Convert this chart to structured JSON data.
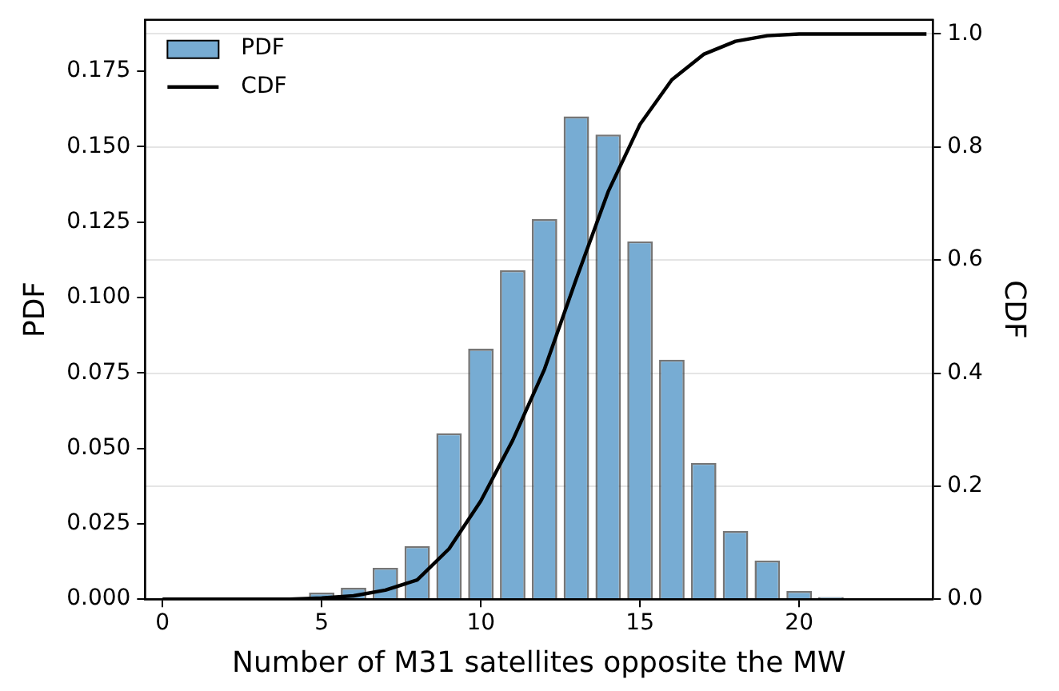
{
  "chart_data": {
    "type": "bar",
    "xlabel": "Number of M31 satellites opposite the MW",
    "ylabel": "PDF",
    "y2label": "CDF",
    "xlim": [
      -0.55,
      24.2
    ],
    "xticks": [
      0,
      5,
      10,
      15,
      20
    ],
    "ylim": [
      0,
      0.192
    ],
    "yticks": [
      {
        "value": 0,
        "label": "0.000"
      },
      {
        "value": 0.025,
        "label": "0.025"
      },
      {
        "value": 0.05,
        "label": "0.050"
      },
      {
        "value": 0.075,
        "label": "0.075"
      },
      {
        "value": 0.1,
        "label": "0.100"
      },
      {
        "value": 0.125,
        "label": "0.125"
      },
      {
        "value": 0.15,
        "label": "0.150"
      },
      {
        "value": 0.175,
        "label": "0.175"
      }
    ],
    "y2lim": [
      0,
      1.025
    ],
    "y2ticks": [
      {
        "value": 0,
        "label": "0.0"
      },
      {
        "value": 0.2,
        "label": "0.2"
      },
      {
        "value": 0.4,
        "label": "0.4"
      },
      {
        "value": 0.6,
        "label": "0.6"
      },
      {
        "value": 0.8,
        "label": "0.8"
      },
      {
        "value": 1,
        "label": "1.0"
      }
    ],
    "grid": "y",
    "legend": "top left",
    "series": [
      {
        "name": "PDF",
        "color": "#77acd3",
        "x": [
          0,
          1,
          2,
          3,
          4,
          5,
          6,
          7,
          8,
          9,
          10,
          11,
          12,
          13,
          14,
          15,
          16,
          17,
          18,
          19,
          20,
          21,
          22,
          23
        ],
        "values": [
          0,
          0,
          0,
          0,
          0,
          0.0022,
          0.0038,
          0.0104,
          0.0176,
          0.055,
          0.083,
          0.109,
          0.126,
          0.16,
          0.154,
          0.1186,
          0.0794,
          0.0452,
          0.0226,
          0.0128,
          0.0027,
          0.0007,
          0,
          0
        ]
      },
      {
        "name": "CDF",
        "type": "line",
        "axis": "y2",
        "color": "#000000",
        "x": [
          0,
          1,
          2,
          3,
          4,
          5,
          6,
          7,
          8,
          9,
          10,
          11,
          12,
          13,
          14,
          15,
          16,
          17,
          18,
          19,
          20,
          21,
          22,
          23,
          24
        ],
        "values": [
          0,
          0,
          0,
          0,
          0,
          0.002,
          0.006,
          0.016,
          0.034,
          0.089,
          0.174,
          0.281,
          0.407,
          0.567,
          0.721,
          0.84,
          0.919,
          0.964,
          0.987,
          0.997,
          1,
          1,
          1,
          1,
          1
        ]
      }
    ]
  }
}
